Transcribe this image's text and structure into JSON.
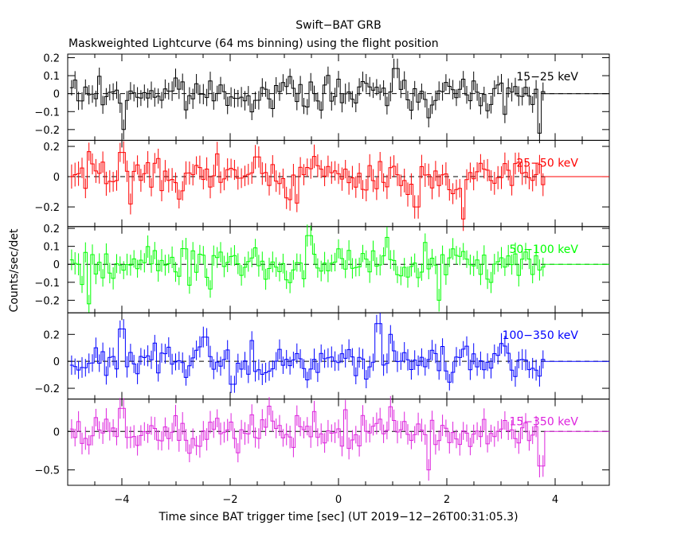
{
  "chart_data": {
    "type": "line",
    "title": "Swift−BAT GRB",
    "subtitle": "Maskweighted Lightcurve (64 ms binning) using the flight position",
    "xlabel": "Time since BAT trigger time [sec] (UT 2019−12−26T00:31:05.3)",
    "ylabel": "Counts/sec/det",
    "xlim": [
      -5,
      5
    ],
    "x_ticks": [
      -4,
      -2,
      0,
      2,
      4
    ],
    "x_tick_labels": [
      "−4",
      "−2",
      "0",
      "2",
      "4"
    ],
    "x_start": -4.96,
    "bin_width": 0.064,
    "data_end": 3.81,
    "grid": false,
    "panels": [
      {
        "name": "15−25 keV",
        "color": "#000000",
        "ylim": [
          -0.26,
          0.22
        ],
        "ticks": [
          0.2,
          0.1,
          0,
          -0.1,
          -0.2
        ],
        "tick_labels": [
          "0.2",
          "0.1",
          "0",
          "−0.1",
          "−0.2"
        ],
        "amp": 0.045,
        "err": 0.05,
        "events": [
          {
            "x": -3.98,
            "v": -0.2
          },
          {
            "x": 1.05,
            "v": 0.14
          },
          {
            "x": 3.72,
            "v": -0.22
          }
        ]
      },
      {
        "name": "25−50 keV",
        "color": "#ff0000",
        "ylim": [
          -0.33,
          0.24
        ],
        "ticks": [
          0.2,
          0,
          -0.2
        ],
        "tick_labels": [
          "0.2",
          "0",
          "−0.2"
        ],
        "amp": 0.07,
        "err": 0.07,
        "events": [
          {
            "x": -4.0,
            "v": 0.16
          },
          {
            "x": -1.5,
            "v": 0.13
          },
          {
            "x": 1.45,
            "v": -0.2
          },
          {
            "x": 2.3,
            "v": -0.28
          }
        ]
      },
      {
        "name": "50−100 keV",
        "color": "#00ff00",
        "ylim": [
          -0.27,
          0.21
        ],
        "ticks": [
          0.2,
          0.1,
          0,
          -0.1,
          -0.2
        ],
        "tick_labels": [
          "0.2",
          "0.1",
          "0",
          "−0.1",
          "−0.2"
        ],
        "amp": 0.05,
        "err": 0.055,
        "events": [
          {
            "x": -4.6,
            "v": -0.22
          },
          {
            "x": -0.55,
            "v": 0.16
          },
          {
            "x": 0.9,
            "v": 0.15
          },
          {
            "x": 1.85,
            "v": -0.2
          }
        ]
      },
      {
        "name": "100−350 keV",
        "color": "#0000ff",
        "ylim": [
          -0.28,
          0.36
        ],
        "ticks": [
          0.2,
          0,
          -0.2
        ],
        "tick_labels": [
          "0.2",
          "0",
          "−0.2"
        ],
        "amp": 0.065,
        "err": 0.07,
        "events": [
          {
            "x": -4.0,
            "v": 0.24
          },
          {
            "x": -2.45,
            "v": 0.18
          },
          {
            "x": 0.75,
            "v": 0.28
          },
          {
            "x": 0.95,
            "v": 0.2
          },
          {
            "x": -1.95,
            "v": -0.17
          }
        ]
      },
      {
        "name": "15−350 keV",
        "color": "#dd22dd",
        "ylim": [
          -0.7,
          0.42
        ],
        "ticks": [
          0,
          -0.5
        ],
        "tick_labels": [
          "0",
          "−0.5"
        ],
        "amp": 0.12,
        "err": 0.13,
        "events": [
          {
            "x": -4.0,
            "v": 0.3
          },
          {
            "x": 0.95,
            "v": 0.32
          },
          {
            "x": 1.65,
            "v": -0.5
          },
          {
            "x": 3.75,
            "v": -0.45
          }
        ]
      }
    ]
  }
}
